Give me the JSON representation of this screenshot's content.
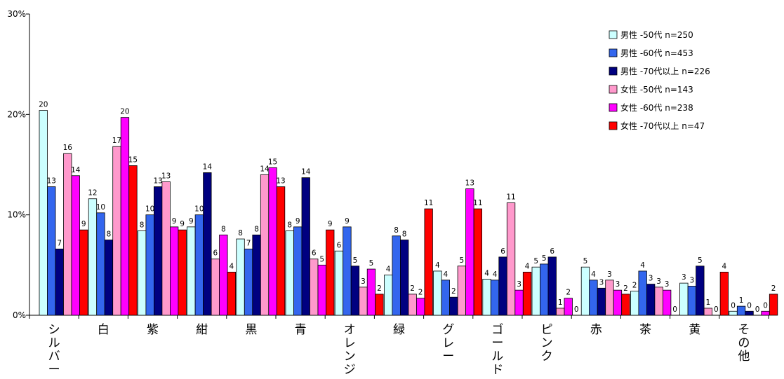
{
  "chart_data": {
    "type": "bar",
    "categories": [
      "シルバー",
      "白",
      "紫",
      "紺",
      "黒",
      "青",
      "オレンジ",
      "緑",
      "グレー",
      "ゴールド",
      "ピンク",
      "赤",
      "茶",
      "黄",
      "その他"
    ],
    "yticks": [
      "0%",
      "10%",
      "20%",
      "30%"
    ],
    "ylim": [
      0,
      30
    ],
    "legend_position": "top-right",
    "series": [
      {
        "name": "男性 -50代 n=250",
        "color": "#ccffff",
        "values": [
          20.4,
          11.6,
          8.4,
          8.8,
          7.6,
          8.4,
          6.4,
          4.0,
          4.4,
          3.6,
          4.8,
          4.8,
          2.4,
          3.2,
          0.4
        ],
        "labels": [
          "20",
          "12",
          "8",
          "9",
          "8",
          "8",
          "6",
          "4",
          "4",
          "4",
          "5",
          "5",
          "2",
          "3",
          "0"
        ]
      },
      {
        "name": "男性 -60代 n=453",
        "color": "#3366ee",
        "values": [
          12.8,
          10.2,
          10.0,
          10.0,
          6.6,
          8.8,
          8.8,
          7.9,
          3.5,
          3.5,
          5.1,
          3.5,
          4.4,
          2.9,
          0.9
        ],
        "labels": [
          "13",
          "10",
          "10",
          "10",
          "7",
          "9",
          "9",
          "8",
          "4",
          "4",
          "5",
          "4",
          "4",
          "3",
          "1"
        ]
      },
      {
        "name": "男性 -70代以上 n=226",
        "color": "#000080",
        "values": [
          6.6,
          7.5,
          12.8,
          14.2,
          8.0,
          13.7,
          4.9,
          7.5,
          1.8,
          5.8,
          5.8,
          2.7,
          3.1,
          4.9,
          0.4
        ],
        "labels": [
          "7",
          "8",
          "13",
          "14",
          "8",
          "14",
          "5",
          "8",
          "2",
          "6",
          "6",
          "3",
          "3",
          "5",
          "0"
        ]
      },
      {
        "name": "女性 -50代 n=143",
        "color": "#ff99cc",
        "values": [
          16.1,
          16.8,
          13.3,
          5.6,
          14.0,
          5.6,
          2.8,
          2.1,
          4.9,
          11.2,
          0.7,
          3.5,
          2.8,
          0.7,
          0.0
        ],
        "labels": [
          "16",
          "17",
          "13",
          "6",
          "14",
          "6",
          "3",
          "2",
          "5",
          "11",
          "1",
          "3",
          "3",
          "1",
          "0"
        ]
      },
      {
        "name": "女性 -60代 n=238",
        "color": "#ff00ff",
        "values": [
          13.9,
          19.7,
          8.8,
          8.0,
          14.7,
          5.0,
          4.6,
          1.7,
          12.6,
          2.5,
          1.7,
          2.5,
          2.5,
          0.0,
          0.4
        ],
        "labels": [
          "14",
          "20",
          "9",
          "8",
          "15",
          "5",
          "5",
          "2",
          "13",
          "3",
          "2",
          "3",
          "3",
          "0",
          "0"
        ]
      },
      {
        "name": "女性 -70代以上 n=47",
        "color": "#ff0000",
        "values": [
          8.5,
          14.9,
          8.5,
          4.3,
          12.8,
          8.5,
          2.1,
          10.6,
          10.6,
          4.3,
          0.0,
          2.1,
          0.0,
          4.3,
          2.1
        ],
        "labels": [
          "9",
          "15",
          "9",
          "4",
          "13",
          "9",
          "2",
          "11",
          "11",
          "4",
          "0",
          "2",
          "0",
          "4",
          "2"
        ]
      }
    ]
  }
}
